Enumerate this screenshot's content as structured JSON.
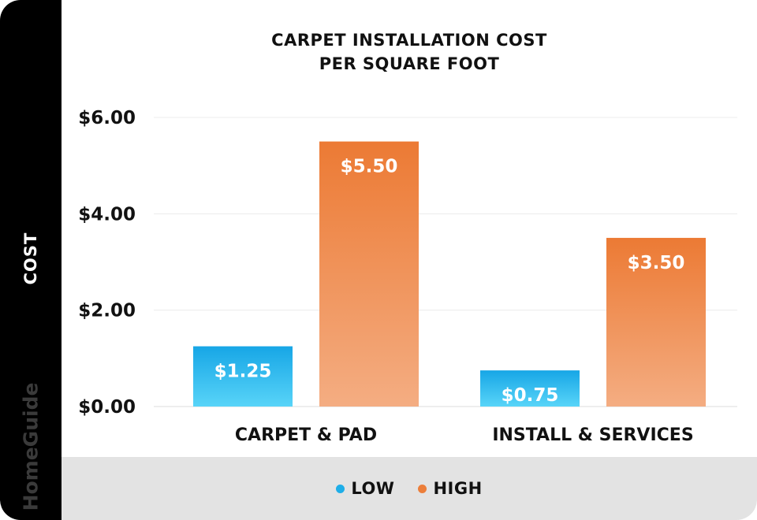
{
  "brand": "HomeGuide",
  "chart_data": {
    "type": "bar",
    "title_lines": [
      "CARPET INSTALLATION COST",
      "PER SQUARE FOOT"
    ],
    "ylabel": "COST",
    "xlabel": "",
    "categories": [
      "CARPET & PAD",
      "INSTALL & SERVICES"
    ],
    "series": [
      {
        "name": "LOW",
        "color": "#1eaee8",
        "values": [
          1.25,
          0.75
        ],
        "value_labels": [
          "$1.25",
          "$0.75"
        ]
      },
      {
        "name": "HIGH",
        "color": "#ec7e3a",
        "values": [
          5.5,
          3.5
        ],
        "value_labels": [
          "$5.50",
          "$3.50"
        ]
      }
    ],
    "ylim": [
      0,
      6
    ],
    "yticks": [
      0,
      2,
      4,
      6
    ],
    "ytick_labels": [
      "$0.00",
      "$2.00",
      "$4.00",
      "$6.00"
    ],
    "grid": true,
    "legend_position": "bottom"
  }
}
